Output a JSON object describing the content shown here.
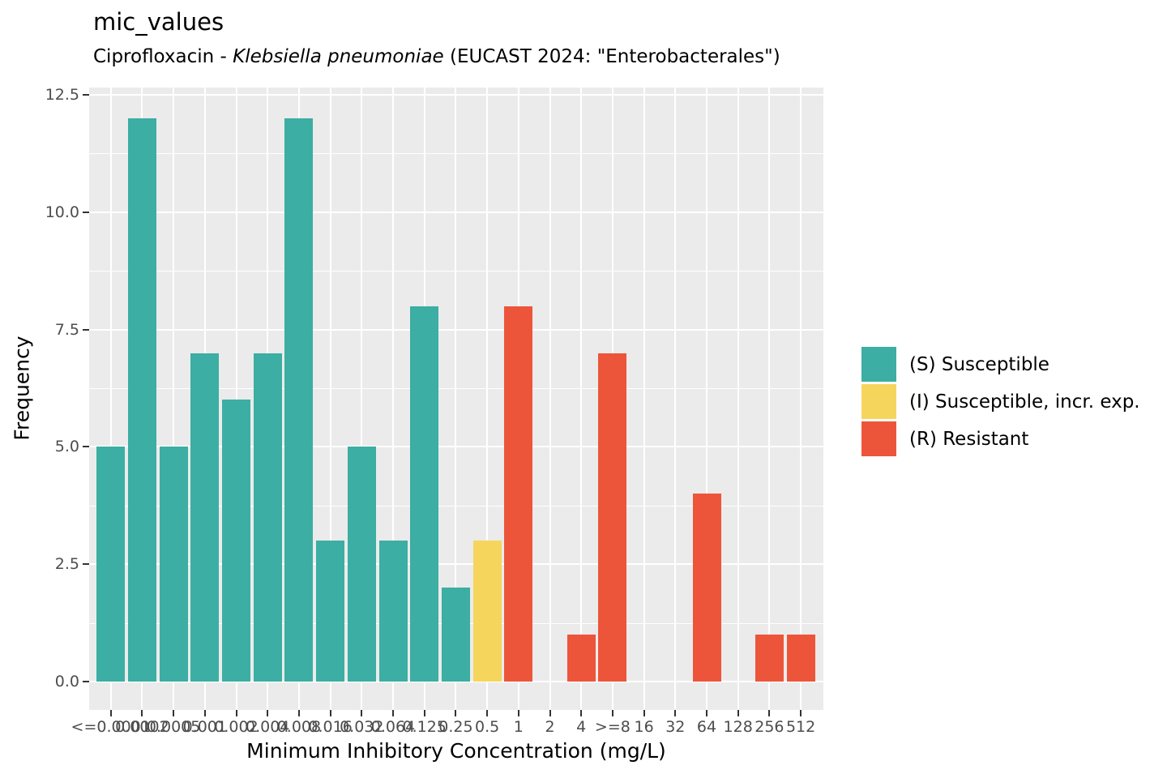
{
  "title": "mic_values",
  "subtitle": {
    "prefix": "Ciprofloxacin - ",
    "italic": "Klebsiella pneumoniae",
    "suffix": " (EUCAST 2024: \"Enterobacterales\")"
  },
  "axes": {
    "x_label": "Minimum Inhibitory Concentration (mg/L)",
    "y_label": "Frequency",
    "y_ticks": [
      {
        "label": "0.0",
        "value": 0
      },
      {
        "label": "2.5",
        "value": 2.5
      },
      {
        "label": "5.0",
        "value": 5
      },
      {
        "label": "7.5",
        "value": 7.5
      },
      {
        "label": "10.0",
        "value": 10
      },
      {
        "label": "12.5",
        "value": 12.5
      }
    ]
  },
  "colors": {
    "susceptible": "#3CAEA3",
    "susceptible_incr_exp": "#F6D55C",
    "resistant": "#ED553B",
    "panel_background": "#EBEBEB",
    "gridline": "#FFFFFF",
    "tick_text": "#4D4D4D",
    "tick_mark": "#333333",
    "text": "#000000"
  },
  "legend": {
    "position": "right",
    "items": [
      {
        "label": "(S) Susceptible",
        "color_key": "susceptible"
      },
      {
        "label": "(I) Susceptible, incr. exp.",
        "color_key": "susceptible_incr_exp"
      },
      {
        "label": "(R) Resistant",
        "color_key": "resistant"
      }
    ]
  },
  "chart_data": {
    "type": "bar",
    "title": "mic_values",
    "subtitle": "Ciprofloxacin - Klebsiella pneumoniae (EUCAST 2024: \"Enterobacterales\")",
    "xlabel": "Minimum Inhibitory Concentration (mg/L)",
    "ylabel": "Frequency",
    "ylim": [
      0,
      12.5
    ],
    "grid": true,
    "legend_position": "right",
    "categories": [
      "<=0.0001",
      "0.0002",
      "0.0005",
      "0.001",
      "0.002",
      "0.004",
      "0.008",
      "0.016",
      "0.032",
      "0.064",
      "0.125",
      "0.25",
      "0.5",
      "1",
      "2",
      "4",
      ">=8",
      "16",
      "32",
      "64",
      "128",
      "256",
      "512"
    ],
    "values": [
      5,
      12,
      5,
      7,
      6,
      7,
      12,
      3,
      5,
      3,
      8,
      2,
      3,
      8,
      0,
      1,
      7,
      0,
      0,
      4,
      0,
      1,
      1
    ],
    "sir": [
      "S",
      "S",
      "S",
      "S",
      "S",
      "S",
      "S",
      "S",
      "S",
      "S",
      "S",
      "S",
      "I",
      "R",
      "R",
      "R",
      "R",
      "R",
      "R",
      "R",
      "R",
      "R",
      "R"
    ],
    "series_meaning": {
      "S": "(S) Susceptible",
      "I": "(I) Susceptible, incr. exp.",
      "R": "(R) Resistant"
    }
  }
}
